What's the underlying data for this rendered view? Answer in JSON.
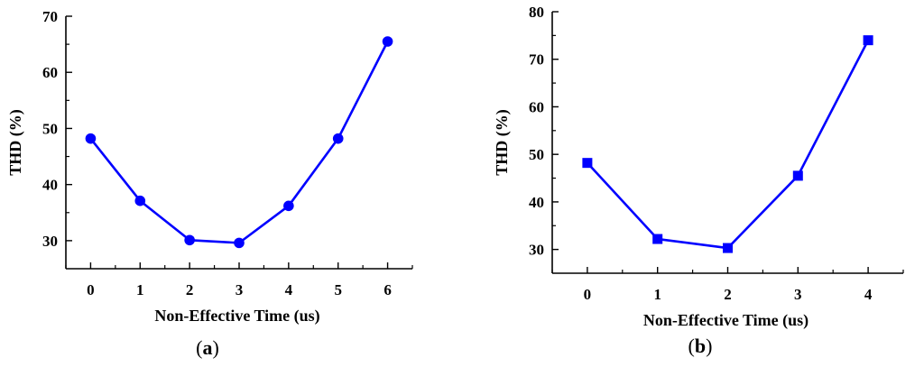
{
  "chart_data": [
    {
      "panel_label_open": "(",
      "panel_label_letter": "a",
      "panel_label_close": ")",
      "type": "line",
      "marker": "circle",
      "color": "#0000FF",
      "xlabel": "Non-Effective Time (us)",
      "ylabel": "THD (%)",
      "xlim": [
        -0.5,
        6.5
      ],
      "ylim": [
        25,
        70
      ],
      "xticks": [
        "0",
        "1",
        "2",
        "3",
        "4",
        "5",
        "6"
      ],
      "yticks": [
        "30",
        "40",
        "50",
        "60",
        "70"
      ],
      "x": [
        0,
        1,
        2,
        3,
        4,
        5,
        6
      ],
      "y": [
        48.2,
        37.1,
        30.1,
        29.6,
        36.2,
        48.2,
        65.5
      ]
    },
    {
      "panel_label_open": "(",
      "panel_label_letter": "b",
      "panel_label_close": ")",
      "type": "line",
      "marker": "square",
      "color": "#0000FF",
      "xlabel": "Non-Effective Time (us)",
      "ylabel": "THD (%)",
      "xlim": [
        -0.5,
        4.5
      ],
      "ylim": [
        25,
        80
      ],
      "xticks": [
        "0",
        "1",
        "2",
        "3",
        "4"
      ],
      "yticks": [
        "30",
        "40",
        "50",
        "60",
        "70",
        "80"
      ],
      "x": [
        0,
        1,
        2,
        3,
        4
      ],
      "y": [
        48.2,
        32.2,
        30.3,
        45.5,
        74.0
      ]
    }
  ]
}
